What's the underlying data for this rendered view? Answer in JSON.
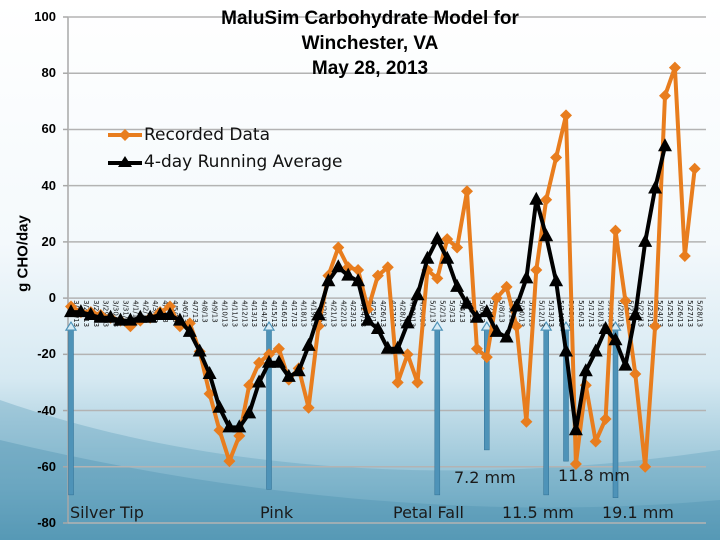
{
  "chart_data": {
    "type": "line",
    "title": [
      "MaluSim Carbohydrate Model for",
      "Winchester, VA",
      "May 28, 2013"
    ],
    "ylabel": "g CHO/day",
    "xlabel": "",
    "ylim": [
      -80,
      100
    ],
    "yticks": [
      100,
      80,
      60,
      40,
      20,
      0,
      -20,
      -40,
      -60,
      -80
    ],
    "grid": true,
    "legend_position": "top-left",
    "x": [
      "3/26/13",
      "3/27/13",
      "3/28/13",
      "3/29/13",
      "3/30/13",
      "3/31/13",
      "4/1/13",
      "4/2/13",
      "4/3/13",
      "4/4/13",
      "4/5/13",
      "4/6/13",
      "4/7/13",
      "4/8/13",
      "4/9/13",
      "4/10/13",
      "4/11/13",
      "4/12/13",
      "4/13/13",
      "4/14/13",
      "4/15/13",
      "4/16/13",
      "4/17/13",
      "4/18/13",
      "4/19/13",
      "4/20/13",
      "4/21/13",
      "4/22/13",
      "4/23/13",
      "4/24/13",
      "4/25/13",
      "4/26/13",
      "4/27/13",
      "4/28/13",
      "4/29/13",
      "4/30/13",
      "5/1/13",
      "5/2/13",
      "5/3/13",
      "5/4/13",
      "5/5/13",
      "5/6/13",
      "5/7/13",
      "5/8/13",
      "5/9/13",
      "5/10/13",
      "5/11/13",
      "5/12/13",
      "5/13/13",
      "5/14/13",
      "5/15/13",
      "5/16/13",
      "5/17/13",
      "5/18/13",
      "5/19/13",
      "5/20/13",
      "5/21/13",
      "5/22/13",
      "5/23/13",
      "5/24/13",
      "5/25/13",
      "5/26/13",
      "5/27/13",
      "5/28/13"
    ],
    "series": [
      {
        "name": "Recorded Data",
        "color": "#e87d1e",
        "marker": "diamond",
        "values": [
          -3,
          -5,
          -5,
          -6,
          -7,
          -8,
          -10,
          -8,
          -7,
          -5,
          -3,
          -10,
          -9,
          -19,
          -34,
          -47,
          -58,
          -49,
          -31,
          -23,
          -20,
          -18,
          -29,
          -25,
          -39,
          -10,
          8,
          18,
          11,
          10,
          -4,
          8,
          11,
          -30,
          -20,
          -30,
          10,
          7,
          21,
          18,
          38,
          -18,
          -21,
          0,
          4,
          -10,
          -44,
          10,
          35,
          50,
          65,
          -59,
          -31,
          -51,
          -43,
          24,
          -1,
          -27,
          -60,
          -10,
          72,
          82,
          15,
          46
        ]
      },
      {
        "name": "4-day Running Average",
        "color": "#000000",
        "marker": "triangle",
        "values": [
          -5,
          -5,
          -6,
          -7,
          -7,
          -8,
          -8,
          -7,
          -7,
          -6,
          -6,
          -8,
          -12,
          -19,
          -27,
          -39,
          -46,
          -46,
          -41,
          -30,
          -23,
          -23,
          -28,
          -26,
          -17,
          -6,
          6,
          11,
          8,
          6,
          -8,
          -11,
          -18,
          -18,
          -9,
          1,
          14,
          21,
          14,
          4,
          -2,
          -7,
          -5,
          -12,
          -14,
          -3,
          7,
          35,
          22,
          6,
          -19,
          -47,
          -26,
          -19,
          -11,
          -15,
          -24,
          -6,
          20,
          39,
          54,
          null,
          null,
          null
        ]
      }
    ],
    "annotations": [
      {
        "label": "Silver Tip",
        "date": "3/26/13",
        "value": -70
      },
      {
        "label": "Pink",
        "date": "4/15/13",
        "value": -68
      },
      {
        "label": "Petal Fall",
        "date": "5/2/13",
        "value": -70
      },
      {
        "label": "7.2 mm",
        "date": "5/7/13",
        "value": -54
      },
      {
        "label": "11.5 mm",
        "date": "5/13/13",
        "value": -70
      },
      {
        "label": "11.8 mm",
        "date": "5/15/13",
        "value": -58
      },
      {
        "label": "19.1 mm",
        "date": "5/20/13",
        "value": -71
      }
    ]
  }
}
